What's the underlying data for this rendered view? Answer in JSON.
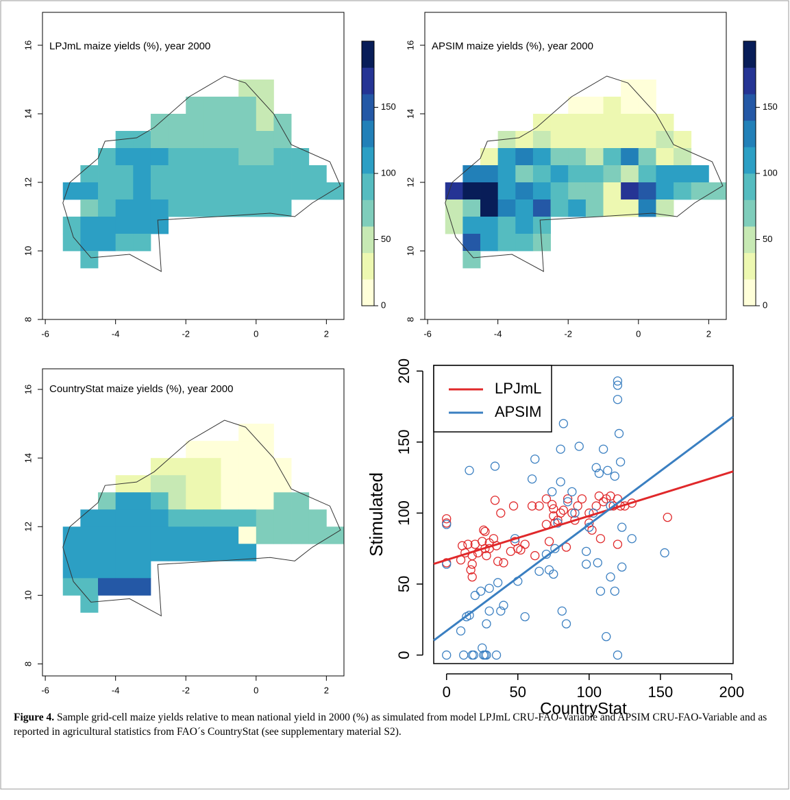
{
  "chart_data": [
    {
      "type": "heatmap",
      "title": "LPJmL  maize yields (%), year 2000",
      "x": [
        -5.25,
        -4.75,
        -4.25,
        -3.75,
        -3.25,
        -2.75,
        -2.25,
        -1.75,
        -1.25,
        -0.75,
        -0.25,
        0.25,
        0.75,
        1.25,
        1.75,
        2.25
      ],
      "y": [
        14.75,
        14.25,
        13.75,
        13.25,
        12.75,
        12.25,
        11.75,
        11.25,
        10.75,
        10.25,
        9.75
      ],
      "values": [
        [
          null,
          null,
          null,
          null,
          null,
          null,
          null,
          null,
          null,
          null,
          55,
          55,
          null,
          null,
          null,
          null
        ],
        [
          null,
          null,
          null,
          null,
          null,
          null,
          null,
          75,
          75,
          75,
          70,
          55,
          null,
          null,
          null,
          null
        ],
        [
          null,
          null,
          null,
          null,
          null,
          70,
          70,
          75,
          75,
          70,
          65,
          55,
          70,
          null,
          null,
          null
        ],
        [
          null,
          null,
          null,
          90,
          80,
          75,
          70,
          75,
          75,
          70,
          65,
          70,
          75,
          null,
          null,
          null
        ],
        [
          null,
          null,
          95,
          100,
          110,
          105,
          95,
          90,
          85,
          80,
          75,
          75,
          80,
          85,
          null,
          null
        ],
        [
          null,
          80,
          95,
          95,
          100,
          95,
          90,
          90,
          90,
          85,
          80,
          80,
          85,
          90,
          90,
          null
        ],
        [
          105,
          105,
          90,
          95,
          100,
          95,
          90,
          90,
          90,
          90,
          85,
          85,
          85,
          90,
          90,
          90
        ],
        [
          null,
          65,
          90,
          100,
          105,
          100,
          95,
          90,
          90,
          90,
          90,
          90,
          85,
          null,
          null,
          null
        ],
        [
          80,
          100,
          100,
          100,
          105,
          100,
          null,
          null,
          null,
          null,
          null,
          null,
          null,
          null,
          null,
          null
        ],
        [
          80,
          100,
          100,
          95,
          90,
          null,
          null,
          null,
          null,
          null,
          null,
          null,
          null,
          null,
          null,
          null
        ],
        [
          null,
          90,
          null,
          null,
          null,
          null,
          null,
          null,
          null,
          null,
          null,
          null,
          null,
          null,
          null,
          null
        ]
      ],
      "xlim": [
        -6.08,
        2.5
      ],
      "ylim": [
        8,
        16.96
      ],
      "xticks": [
        -6,
        -4,
        -2,
        0,
        2
      ],
      "yticks": [
        8,
        10,
        12,
        14,
        16
      ],
      "breaks": [
        0,
        20,
        40,
        60,
        80,
        100,
        120,
        140,
        160,
        180,
        200
      ],
      "colors": [
        "#ffffd9",
        "#edf8b1",
        "#c7e9b4",
        "#7fcdbb",
        "#55bcc0",
        "#2c9fc4",
        "#2280b8",
        "#2458a6",
        "#253494",
        "#081d58"
      ],
      "colorbar": true,
      "colorbar_ticks": [
        0,
        50,
        100,
        150
      ]
    },
    {
      "type": "heatmap",
      "title": "APSIM  maize yields (%), year 2000",
      "x": [
        -5.25,
        -4.75,
        -4.25,
        -3.75,
        -3.25,
        -2.75,
        -2.25,
        -1.75,
        -1.25,
        -0.75,
        -0.25,
        0.25,
        0.75,
        1.25,
        1.75,
        2.25
      ],
      "y": [
        14.75,
        14.25,
        13.75,
        13.25,
        12.75,
        12.25,
        11.75,
        11.25,
        10.75,
        10.25,
        9.75
      ],
      "values": [
        [
          null,
          null,
          null,
          null,
          null,
          null,
          null,
          null,
          null,
          null,
          15,
          15,
          null,
          null,
          null,
          null
        ],
        [
          null,
          null,
          null,
          null,
          null,
          null,
          null,
          15,
          15,
          20,
          15,
          15,
          null,
          null,
          null,
          null
        ],
        [
          null,
          null,
          null,
          null,
          null,
          30,
          30,
          20,
          25,
          25,
          20,
          20,
          30,
          null,
          null,
          null
        ],
        [
          null,
          null,
          null,
          40,
          30,
          40,
          30,
          30,
          35,
          30,
          30,
          35,
          40,
          30,
          null,
          null
        ],
        [
          null,
          null,
          30,
          110,
          130,
          100,
          60,
          70,
          40,
          90,
          130,
          60,
          30,
          40,
          null,
          null
        ],
        [
          null,
          130,
          120,
          110,
          70,
          80,
          100,
          90,
          80,
          60,
          40,
          90,
          100,
          110,
          110,
          null
        ],
        [
          160,
          185,
          195,
          110,
          120,
          100,
          80,
          70,
          75,
          20,
          160,
          140,
          100,
          80,
          70,
          70
        ],
        [
          50,
          60,
          190,
          120,
          110,
          150,
          90,
          100,
          60,
          30,
          30,
          120,
          40,
          null,
          null,
          null
        ],
        [
          50,
          110,
          100,
          95,
          110,
          80,
          null,
          null,
          null,
          null,
          null,
          null,
          null,
          null,
          null,
          null
        ],
        [
          null,
          140,
          100,
          90,
          80,
          70,
          null,
          null,
          null,
          null,
          null,
          null,
          null,
          null,
          null,
          null
        ],
        [
          null,
          70,
          null,
          null,
          null,
          null,
          null,
          null,
          null,
          null,
          null,
          null,
          null,
          null,
          null,
          null
        ]
      ],
      "xlim": [
        -6.08,
        2.5
      ],
      "ylim": [
        8,
        16.96
      ],
      "xticks": [
        -6,
        -4,
        -2,
        0,
        2
      ],
      "yticks": [
        8,
        10,
        12,
        14,
        16
      ],
      "breaks": [
        0,
        20,
        40,
        60,
        80,
        100,
        120,
        140,
        160,
        180,
        200
      ],
      "colors": [
        "#ffffd9",
        "#edf8b1",
        "#c7e9b4",
        "#7fcdbb",
        "#55bcc0",
        "#2c9fc4",
        "#2280b8",
        "#2458a6",
        "#253494",
        "#081d58"
      ],
      "colorbar": true,
      "colorbar_ticks": [
        0,
        50,
        100,
        150
      ]
    },
    {
      "type": "heatmap",
      "title": "CountryStat  maize yields (%), year 2000",
      "x": [
        -5.25,
        -4.75,
        -4.25,
        -3.75,
        -3.25,
        -2.75,
        -2.25,
        -1.75,
        -1.25,
        -0.75,
        -0.25,
        0.25,
        0.75,
        1.25,
        1.75,
        2.25
      ],
      "y": [
        14.75,
        14.25,
        13.75,
        13.25,
        12.75,
        12.25,
        11.75,
        11.25,
        10.75,
        10.25,
        9.75
      ],
      "values": [
        [
          null,
          null,
          null,
          null,
          null,
          null,
          null,
          null,
          null,
          null,
          15,
          15,
          null,
          null,
          null,
          null
        ],
        [
          null,
          null,
          null,
          null,
          null,
          null,
          null,
          15,
          15,
          15,
          10,
          10,
          null,
          null,
          null,
          null
        ],
        [
          null,
          null,
          null,
          null,
          null,
          20,
          20,
          25,
          25,
          15,
          15,
          10,
          10,
          null,
          null,
          null
        ],
        [
          null,
          null,
          null,
          30,
          30,
          40,
          40,
          30,
          20,
          10,
          10,
          10,
          10,
          null,
          null,
          null
        ],
        [
          null,
          null,
          60,
          100,
          100,
          90,
          40,
          30,
          30,
          10,
          10,
          10,
          70,
          70,
          null,
          null
        ],
        [
          null,
          110,
          110,
          110,
          100,
          100,
          90,
          90,
          90,
          80,
          80,
          70,
          70,
          70,
          70,
          null
        ],
        [
          110,
          110,
          110,
          110,
          110,
          110,
          110,
          110,
          110,
          110,
          10,
          75,
          75,
          75,
          75,
          75
        ],
        [
          110,
          110,
          110,
          110,
          110,
          110,
          110,
          110,
          110,
          110,
          100,
          null,
          null,
          null,
          null,
          null
        ],
        [
          110,
          110,
          110,
          110,
          110,
          null,
          null,
          null,
          null,
          null,
          null,
          null,
          null,
          null,
          null,
          null
        ],
        [
          80,
          80,
          140,
          150,
          150,
          null,
          null,
          null,
          null,
          null,
          null,
          null,
          null,
          null,
          null,
          null
        ],
        [
          null,
          80,
          null,
          null,
          null,
          null,
          null,
          null,
          null,
          null,
          null,
          null,
          null,
          null,
          null,
          null
        ]
      ],
      "xlim": [
        -6.08,
        2.5
      ],
      "ylim": [
        7.65,
        16.6
      ],
      "xticks": [
        -6,
        -4,
        -2,
        0,
        2
      ],
      "yticks": [
        8,
        10,
        12,
        14,
        16
      ],
      "breaks": [
        0,
        20,
        40,
        60,
        80,
        100,
        120,
        140,
        160,
        180,
        200
      ],
      "colors": [
        "#ffffd9",
        "#edf8b1",
        "#c7e9b4",
        "#7fcdbb",
        "#55bcc0",
        "#2c9fc4",
        "#2280b8",
        "#2458a6",
        "#253494",
        "#081d58"
      ],
      "colorbar": false
    },
    {
      "type": "scatter",
      "x_label": "CountryStat",
      "y_label": "Stimulated",
      "xlim": [
        -9,
        201
      ],
      "ylim": [
        -6,
        204
      ],
      "xticks": [
        0,
        50,
        100,
        150,
        200
      ],
      "yticks": [
        0,
        50,
        100,
        150,
        200
      ],
      "legend": "top-left",
      "series": [
        {
          "name": "LPJmL",
          "color": "#e0282a",
          "x": [
            0,
            0,
            0,
            10,
            11,
            13,
            15,
            17,
            18,
            18,
            18,
            20,
            22,
            25,
            26,
            27,
            27,
            28,
            30,
            30,
            33,
            34,
            35,
            36,
            38,
            40,
            45,
            47,
            48,
            50,
            52,
            55,
            60,
            62,
            65,
            70,
            72,
            74,
            75,
            75,
            76,
            78,
            80,
            82,
            84,
            85,
            88,
            92,
            95,
            100,
            102,
            105,
            107,
            110,
            112,
            115,
            117,
            120,
            120,
            122,
            125,
            130,
            155,
            108,
            90,
            70,
            100
          ],
          "values": [
            96,
            93,
            65,
            67,
            77,
            72,
            78,
            60,
            70,
            64,
            55,
            78,
            72,
            80,
            88,
            87,
            75,
            70,
            75,
            79,
            82,
            109,
            77,
            66,
            100,
            65,
            73,
            105,
            80,
            75,
            74,
            78,
            105,
            70,
            105,
            110,
            80,
            106,
            103,
            98,
            93,
            95,
            100,
            102,
            76,
            110,
            100,
            105,
            110,
            100,
            88,
            105,
            112,
            108,
            110,
            112,
            105,
            110,
            78,
            105,
            105,
            107,
            97,
            82,
            95,
            92,
            93
          ],
          "fit_x": [
            -9,
            201
          ],
          "fit_values": [
            64.2,
            129.3
          ]
        },
        {
          "name": "APSIM",
          "color": "#3a7fc1",
          "x": [
            0,
            0,
            0,
            10,
            12,
            14,
            16,
            16,
            18,
            19,
            20,
            24,
            25,
            26,
            27,
            28,
            28,
            30,
            30,
            34,
            35,
            36,
            38,
            40,
            48,
            50,
            55,
            60,
            62,
            65,
            70,
            72,
            74,
            75,
            76,
            78,
            80,
            80,
            81,
            82,
            84,
            85,
            88,
            90,
            93,
            98,
            98,
            100,
            103,
            105,
            106,
            107,
            108,
            110,
            112,
            113,
            115,
            118,
            118,
            120,
            120,
            120,
            121,
            120,
            122,
            123,
            123,
            130,
            153,
            115
          ],
          "values": [
            92,
            64,
            0,
            17,
            0,
            27,
            130,
            28,
            0,
            0,
            42,
            45,
            5,
            0,
            0,
            0,
            22,
            31,
            47,
            133,
            0,
            51,
            31,
            35,
            82,
            52,
            27,
            124,
            138,
            59,
            71,
            60,
            115,
            57,
            75,
            93,
            122,
            145,
            31,
            163,
            22,
            108,
            115,
            100,
            147,
            64,
            73,
            90,
            100,
            132,
            65,
            128,
            45,
            145,
            13,
            130,
            105,
            45,
            126,
            193,
            190,
            180,
            156,
            0,
            136,
            62,
            90,
            82,
            72,
            55
          ],
          "fit_x": [
            -9,
            201
          ],
          "fit_values": [
            10.3,
            167.8
          ]
        }
      ]
    }
  ],
  "caption": {
    "label": "Figure 4.",
    "text": "Sample grid-cell maize yields relative to mean national yield in 2000 (%) as simulated from model LPJmL CRU-FAO-Variable and APSIM CRU-FAO-Variable and as reported in agricultural statistics from FAO´s CountryStat (see supplementary material S2)."
  }
}
